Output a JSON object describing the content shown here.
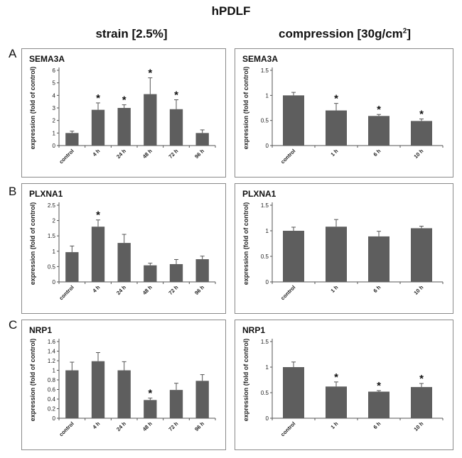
{
  "figure": {
    "title": "hPDLF",
    "col_left": "strain [2.5%]",
    "col_right_main": "compression [30g/cm",
    "col_right_sup": "2",
    "col_right_end": "]",
    "rows": [
      "A",
      "B",
      "C"
    ]
  },
  "chart_data": [
    {
      "id": "a-left",
      "type": "bar",
      "title": "SEMA3A",
      "ylabel": "expression (fold of control)",
      "xlabel": "",
      "ylim": [
        0,
        6
      ],
      "yticks": [
        0,
        1,
        2,
        3,
        4,
        5,
        6
      ],
      "ytick_labels": [
        "0",
        "1",
        "2",
        "3",
        "4",
        "5",
        "6"
      ],
      "categories": [
        "control",
        "4 h",
        "24 h",
        "48 h",
        "72 h",
        "96 h"
      ],
      "values": [
        1.0,
        2.85,
        3.0,
        4.1,
        2.9,
        1.0
      ],
      "errors": [
        0.15,
        0.55,
        0.25,
        1.3,
        0.75,
        0.25
      ],
      "significant": [
        false,
        true,
        true,
        true,
        true,
        false
      ],
      "color": "#5e5e5e"
    },
    {
      "id": "a-right",
      "type": "bar",
      "title": "SEMA3A",
      "ylabel": "expression (fold of control)",
      "xlabel": "",
      "ylim": [
        0,
        1.5
      ],
      "yticks": [
        0,
        0.5,
        1,
        1.5
      ],
      "ytick_labels": [
        "0",
        "0.5",
        "1",
        "1.5"
      ],
      "categories": [
        "control",
        "1 h",
        "6 h",
        "10 h"
      ],
      "values": [
        1.0,
        0.7,
        0.59,
        0.49
      ],
      "errors": [
        0.06,
        0.14,
        0.03,
        0.04
      ],
      "significant": [
        false,
        true,
        true,
        true
      ],
      "color": "#5e5e5e"
    },
    {
      "id": "b-left",
      "type": "bar",
      "title": "PLXNA1",
      "ylabel": "expression (fold of control)",
      "xlabel": "",
      "ylim": [
        0,
        2.5
      ],
      "yticks": [
        0,
        0.5,
        1,
        1.5,
        2,
        2.5
      ],
      "ytick_labels": [
        "0",
        "0.5",
        "1",
        "1.5",
        "2",
        "2.5"
      ],
      "categories": [
        "control",
        "4 h",
        "24 h",
        "48 h",
        "72 h",
        "96 h"
      ],
      "values": [
        0.97,
        1.8,
        1.27,
        0.54,
        0.58,
        0.74
      ],
      "errors": [
        0.2,
        0.22,
        0.28,
        0.07,
        0.15,
        0.1
      ],
      "significant": [
        false,
        true,
        false,
        false,
        false,
        false
      ],
      "color": "#5e5e5e"
    },
    {
      "id": "b-right",
      "type": "bar",
      "title": "PLXNA1",
      "ylabel": "expression (fold of control)",
      "xlabel": "",
      "ylim": [
        0,
        1.5
      ],
      "yticks": [
        0,
        0.5,
        1,
        1.5
      ],
      "ytick_labels": [
        "0",
        "0.5",
        "1",
        "1.5"
      ],
      "categories": [
        "control",
        "1 h",
        "6 h",
        "10 h"
      ],
      "values": [
        1.0,
        1.08,
        0.89,
        1.05
      ],
      "errors": [
        0.07,
        0.14,
        0.1,
        0.04
      ],
      "significant": [
        false,
        false,
        false,
        false
      ],
      "color": "#5e5e5e"
    },
    {
      "id": "c-left",
      "type": "bar",
      "title": "NRP1",
      "ylabel": "expression (fold of control)",
      "xlabel": "",
      "ylim": [
        0,
        1.6
      ],
      "yticks": [
        0,
        0.2,
        0.4,
        0.6,
        0.8,
        1,
        1.2,
        1.4,
        1.6
      ],
      "ytick_labels": [
        "0",
        "0.2",
        "0.4",
        "0.6",
        "0.8",
        "1",
        "1.2",
        "1.4",
        "1.6"
      ],
      "categories": [
        "control",
        "4 h",
        "24 h",
        "48 h",
        "72 h",
        "96 h"
      ],
      "values": [
        1.0,
        1.19,
        1.0,
        0.38,
        0.59,
        0.78
      ],
      "errors": [
        0.17,
        0.18,
        0.18,
        0.04,
        0.14,
        0.13
      ],
      "significant": [
        false,
        false,
        false,
        true,
        false,
        false
      ],
      "color": "#5e5e5e"
    },
    {
      "id": "c-right",
      "type": "bar",
      "title": "NRP1",
      "ylabel": "expression (fold of control)",
      "xlabel": "",
      "ylim": [
        0,
        1.5
      ],
      "yticks": [
        0,
        0.5,
        1,
        1.5
      ],
      "ytick_labels": [
        "0",
        "0.5",
        "1",
        "1.5"
      ],
      "categories": [
        "control",
        "1 h",
        "6 h",
        "10 h"
      ],
      "values": [
        1.0,
        0.62,
        0.52,
        0.61
      ],
      "errors": [
        0.1,
        0.09,
        0.02,
        0.07
      ],
      "significant": [
        false,
        true,
        true,
        true
      ],
      "color": "#5e5e5e"
    }
  ]
}
